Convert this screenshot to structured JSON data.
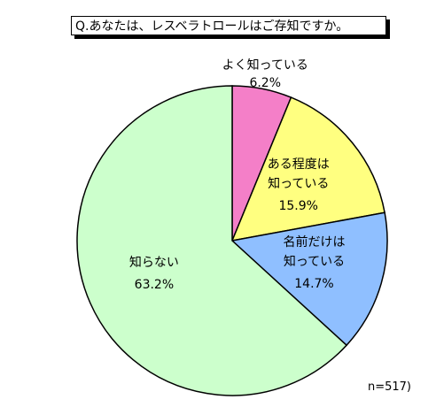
{
  "chart_data": {
    "type": "pie",
    "title": "Q.あなたは、レスベラトロールはご存知ですか。",
    "categories": [
      "よく知っている",
      "ある程度は\n知っている",
      "名前だけは\n知っている",
      "知らない"
    ],
    "values": [
      6.2,
      15.9,
      14.7,
      63.2
    ],
    "value_labels": [
      "6.2%",
      "15.9%",
      "14.7%",
      "63.2%"
    ],
    "colors": [
      "#f47fc8",
      "#ffff80",
      "#8fbfff",
      "#ccffcc"
    ],
    "note": "n=517)"
  }
}
